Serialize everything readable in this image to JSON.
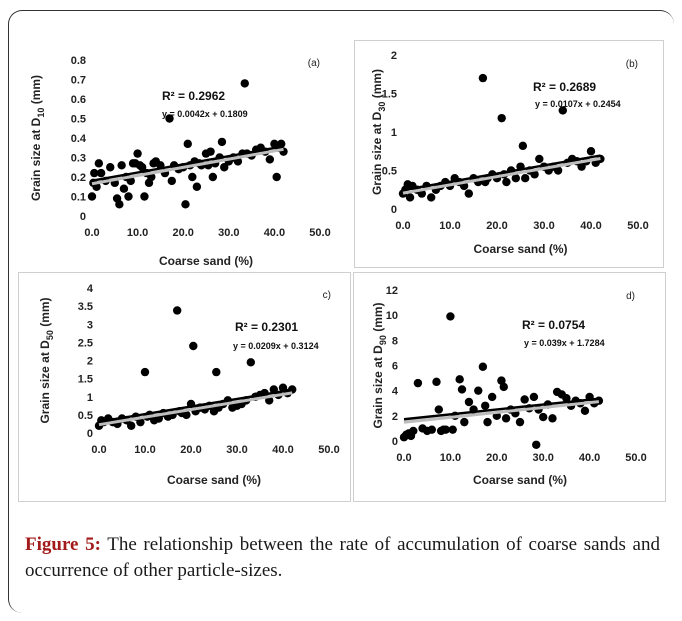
{
  "figure": {
    "label": "Figure 5:",
    "text": "The relationship between the rate of accumulation of coarse sands and occurrence of other particle-sizes."
  },
  "chart_data": [
    {
      "type": "scatter",
      "panel": "(a)",
      "xlabel": "Coarse sand (%)",
      "ylabel": "Grain size at D",
      "ylabel_sub": "10",
      "ylabel_unit": " (mm)",
      "xlim": [
        0,
        50
      ],
      "ylim": [
        0,
        0.8
      ],
      "xticks": [
        "0.0",
        "10.0",
        "20.0",
        "30.0",
        "40.0",
        "50.0"
      ],
      "yticks": [
        "0",
        "0.1",
        "0.2",
        "0.3",
        "0.4",
        "0.5",
        "0.6",
        "0.7",
        "0.8"
      ],
      "r2": "R² = 0.2962",
      "equation": "y = 0.0042x + 0.1809",
      "trend": {
        "slope": 0.0042,
        "intercept": 0.1809,
        "x_range": [
          0,
          42
        ]
      },
      "points": [
        [
          0,
          0.1
        ],
        [
          0.3,
          0.17
        ],
        [
          0.5,
          0.22
        ],
        [
          1,
          0.15
        ],
        [
          1.5,
          0.27
        ],
        [
          2,
          0.22
        ],
        [
          3,
          0.18
        ],
        [
          4,
          0.25
        ],
        [
          5,
          0.17
        ],
        [
          5.5,
          0.09
        ],
        [
          6,
          0.06
        ],
        [
          6.5,
          0.26
        ],
        [
          7,
          0.14
        ],
        [
          7.5,
          0.2
        ],
        [
          8,
          0.1
        ],
        [
          8.5,
          0.18
        ],
        [
          9,
          0.27
        ],
        [
          9.5,
          0.27
        ],
        [
          10,
          0.32
        ],
        [
          10.5,
          0.26
        ],
        [
          11,
          0.25
        ],
        [
          11.5,
          0.1
        ],
        [
          12,
          0.22
        ],
        [
          12.5,
          0.17
        ],
        [
          13,
          0.2
        ],
        [
          13.5,
          0.27
        ],
        [
          14,
          0.28
        ],
        [
          15,
          0.26
        ],
        [
          16,
          0.22
        ],
        [
          17,
          0.5
        ],
        [
          17.5,
          0.18
        ],
        [
          18,
          0.26
        ],
        [
          19,
          0.24
        ],
        [
          20,
          0.25
        ],
        [
          20.5,
          0.06
        ],
        [
          21,
          0.37
        ],
        [
          21.5,
          0.26
        ],
        [
          22,
          0.2
        ],
        [
          22.5,
          0.28
        ],
        [
          23,
          0.15
        ],
        [
          23.5,
          0.27
        ],
        [
          24,
          0.26
        ],
        [
          25,
          0.32
        ],
        [
          25.5,
          0.26
        ],
        [
          26,
          0.33
        ],
        [
          26.5,
          0.2
        ],
        [
          27,
          0.27
        ],
        [
          28,
          0.3
        ],
        [
          28.5,
          0.38
        ],
        [
          29,
          0.25
        ],
        [
          30,
          0.28
        ],
        [
          31,
          0.3
        ],
        [
          32,
          0.28
        ],
        [
          33,
          0.32
        ],
        [
          33.5,
          0.68
        ],
        [
          34,
          0.32
        ],
        [
          35,
          0.31
        ],
        [
          36,
          0.34
        ],
        [
          37,
          0.35
        ],
        [
          38,
          0.33
        ],
        [
          39,
          0.29
        ],
        [
          40,
          0.37
        ],
        [
          40.5,
          0.2
        ],
        [
          41,
          0.35
        ],
        [
          41.5,
          0.37
        ],
        [
          42,
          0.33
        ]
      ]
    },
    {
      "type": "scatter",
      "panel": "(b)",
      "xlabel": "Coarse sand (%)",
      "ylabel": "Grain size at D",
      "ylabel_sub": "30",
      "ylabel_unit": " (mm)",
      "xlim": [
        0,
        50
      ],
      "ylim": [
        0,
        2
      ],
      "xticks": [
        "0.0",
        "10.0",
        "20.0",
        "30.0",
        "40.0",
        "50.0"
      ],
      "yticks": [
        "0",
        "0.5",
        "1",
        "1.5",
        "2"
      ],
      "r2": "R² = 0.2689",
      "equation": "y = 0.0107x + 0.2454",
      "trend": {
        "slope": 0.0107,
        "intercept": 0.2454,
        "x_range": [
          0,
          42
        ]
      },
      "points": [
        [
          0,
          0.2
        ],
        [
          0.5,
          0.25
        ],
        [
          1,
          0.32
        ],
        [
          1.5,
          0.15
        ],
        [
          2,
          0.3
        ],
        [
          3,
          0.25
        ],
        [
          4,
          0.2
        ],
        [
          5,
          0.3
        ],
        [
          6,
          0.15
        ],
        [
          7,
          0.25
        ],
        [
          8,
          0.3
        ],
        [
          9,
          0.35
        ],
        [
          10,
          0.3
        ],
        [
          11,
          0.4
        ],
        [
          12,
          0.35
        ],
        [
          13,
          0.3
        ],
        [
          14,
          0.2
        ],
        [
          15,
          0.4
        ],
        [
          16,
          0.35
        ],
        [
          17,
          1.7
        ],
        [
          17.5,
          0.35
        ],
        [
          18,
          0.4
        ],
        [
          19,
          0.45
        ],
        [
          20,
          0.4
        ],
        [
          21,
          1.18
        ],
        [
          21.5,
          0.45
        ],
        [
          22,
          0.35
        ],
        [
          23,
          0.5
        ],
        [
          24,
          0.4
        ],
        [
          25,
          0.55
        ],
        [
          25.5,
          0.82
        ],
        [
          26,
          0.4
        ],
        [
          27,
          0.5
        ],
        [
          28,
          0.45
        ],
        [
          29,
          0.65
        ],
        [
          30,
          0.55
        ],
        [
          31,
          0.5
        ],
        [
          32,
          0.55
        ],
        [
          33,
          0.5
        ],
        [
          34,
          1.28
        ],
        [
          35,
          0.6
        ],
        [
          36,
          0.65
        ],
        [
          37,
          0.62
        ],
        [
          38,
          0.55
        ],
        [
          39,
          0.62
        ],
        [
          40,
          0.75
        ],
        [
          41,
          0.6
        ],
        [
          42,
          0.65
        ]
      ]
    },
    {
      "type": "scatter",
      "panel": "c)",
      "xlabel": "Coarse sand (%)",
      "ylabel": "Grain size at D",
      "ylabel_sub": "50",
      "ylabel_unit": " (mm)",
      "xlim": [
        0,
        50
      ],
      "ylim": [
        0,
        4
      ],
      "xticks": [
        "0.0",
        "10.0",
        "20.0",
        "30.0",
        "40.0",
        "50.0"
      ],
      "yticks": [
        "0",
        "0.5",
        "1",
        "1.5",
        "2",
        "2.5",
        "3",
        "3.5",
        "4"
      ],
      "r2": "R² = 0.2301",
      "equation": "y = 0.0209x + 0.3124",
      "trend": {
        "slope": 0.0209,
        "intercept": 0.3124,
        "x_range": [
          0,
          42
        ]
      },
      "points": [
        [
          0,
          0.2
        ],
        [
          0.5,
          0.35
        ],
        [
          1,
          0.3
        ],
        [
          2,
          0.4
        ],
        [
          3,
          0.3
        ],
        [
          4,
          0.25
        ],
        [
          5,
          0.4
        ],
        [
          6,
          0.35
        ],
        [
          7,
          0.2
        ],
        [
          8,
          0.45
        ],
        [
          9,
          0.3
        ],
        [
          10,
          1.68
        ],
        [
          10.5,
          0.45
        ],
        [
          11,
          0.5
        ],
        [
          12,
          0.35
        ],
        [
          13,
          0.4
        ],
        [
          14,
          0.55
        ],
        [
          15,
          0.45
        ],
        [
          16,
          0.5
        ],
        [
          17,
          3.38
        ],
        [
          17.5,
          0.6
        ],
        [
          18,
          0.55
        ],
        [
          19,
          0.5
        ],
        [
          20,
          0.8
        ],
        [
          20.5,
          2.4
        ],
        [
          21,
          0.6
        ],
        [
          22,
          0.7
        ],
        [
          23,
          0.65
        ],
        [
          24,
          0.75
        ],
        [
          25,
          0.6
        ],
        [
          25.5,
          1.68
        ],
        [
          26,
          0.7
        ],
        [
          27,
          0.8
        ],
        [
          28,
          0.9
        ],
        [
          29,
          0.7
        ],
        [
          30,
          0.75
        ],
        [
          31,
          0.8
        ],
        [
          32,
          0.9
        ],
        [
          33,
          1.95
        ],
        [
          34,
          1.0
        ],
        [
          35,
          1.05
        ],
        [
          36,
          1.1
        ],
        [
          37,
          0.9
        ],
        [
          38,
          1.2
        ],
        [
          39,
          1.05
        ],
        [
          40,
          1.25
        ],
        [
          41,
          1.1
        ],
        [
          42,
          1.2
        ]
      ]
    },
    {
      "type": "scatter",
      "panel": "d)",
      "xlabel": "Coarse sand (%)",
      "ylabel": "Grain size at D",
      "ylabel_sub": "90",
      "ylabel_unit": " (mm)",
      "xlim": [
        0,
        50
      ],
      "ylim": [
        0,
        12
      ],
      "xticks": [
        "0.0",
        "10.0",
        "20.0",
        "30.0",
        "40.0",
        "50.0"
      ],
      "yticks": [
        "0",
        "2",
        "4",
        "6",
        "8",
        "10",
        "12"
      ],
      "r2": "R² = 0.0754",
      "equation": "y = 0.039x + 1.7284",
      "trend": {
        "slope": 0.039,
        "intercept": 1.7284,
        "x_range": [
          0,
          42
        ]
      },
      "points": [
        [
          0,
          0.3
        ],
        [
          0.5,
          0.5
        ],
        [
          1,
          0.6
        ],
        [
          1.5,
          0.4
        ],
        [
          2,
          0.8
        ],
        [
          3,
          4.6
        ],
        [
          4,
          1.0
        ],
        [
          5,
          0.8
        ],
        [
          6,
          0.9
        ],
        [
          7,
          4.7
        ],
        [
          7.5,
          2.5
        ],
        [
          8,
          0.8
        ],
        [
          8.5,
          0.9
        ],
        [
          9,
          0.9
        ],
        [
          10,
          9.9
        ],
        [
          10.5,
          0.9
        ],
        [
          11,
          2.0
        ],
        [
          12,
          4.9
        ],
        [
          12.5,
          4.1
        ],
        [
          13,
          1.5
        ],
        [
          14,
          3.1
        ],
        [
          15,
          2.5
        ],
        [
          16,
          4.0
        ],
        [
          17,
          5.9
        ],
        [
          17.5,
          2.8
        ],
        [
          18,
          1.5
        ],
        [
          19,
          3.5
        ],
        [
          20,
          2.0
        ],
        [
          21,
          4.8
        ],
        [
          21.5,
          4.3
        ],
        [
          22,
          1.8
        ],
        [
          23,
          2.5
        ],
        [
          24,
          2.2
        ],
        [
          25,
          1.5
        ],
        [
          26,
          3.3
        ],
        [
          27,
          2.6
        ],
        [
          28,
          3.5
        ],
        [
          28.5,
          -0.3
        ],
        [
          29,
          2.5
        ],
        [
          30,
          1.9
        ],
        [
          31,
          2.9
        ],
        [
          32,
          1.8
        ],
        [
          33,
          3.9
        ],
        [
          34,
          3.7
        ],
        [
          35,
          3.4
        ],
        [
          36,
          2.8
        ],
        [
          37,
          3.2
        ],
        [
          38,
          3.0
        ],
        [
          39,
          2.4
        ],
        [
          40,
          3.5
        ],
        [
          41,
          3.0
        ],
        [
          42,
          3.2
        ]
      ]
    }
  ]
}
